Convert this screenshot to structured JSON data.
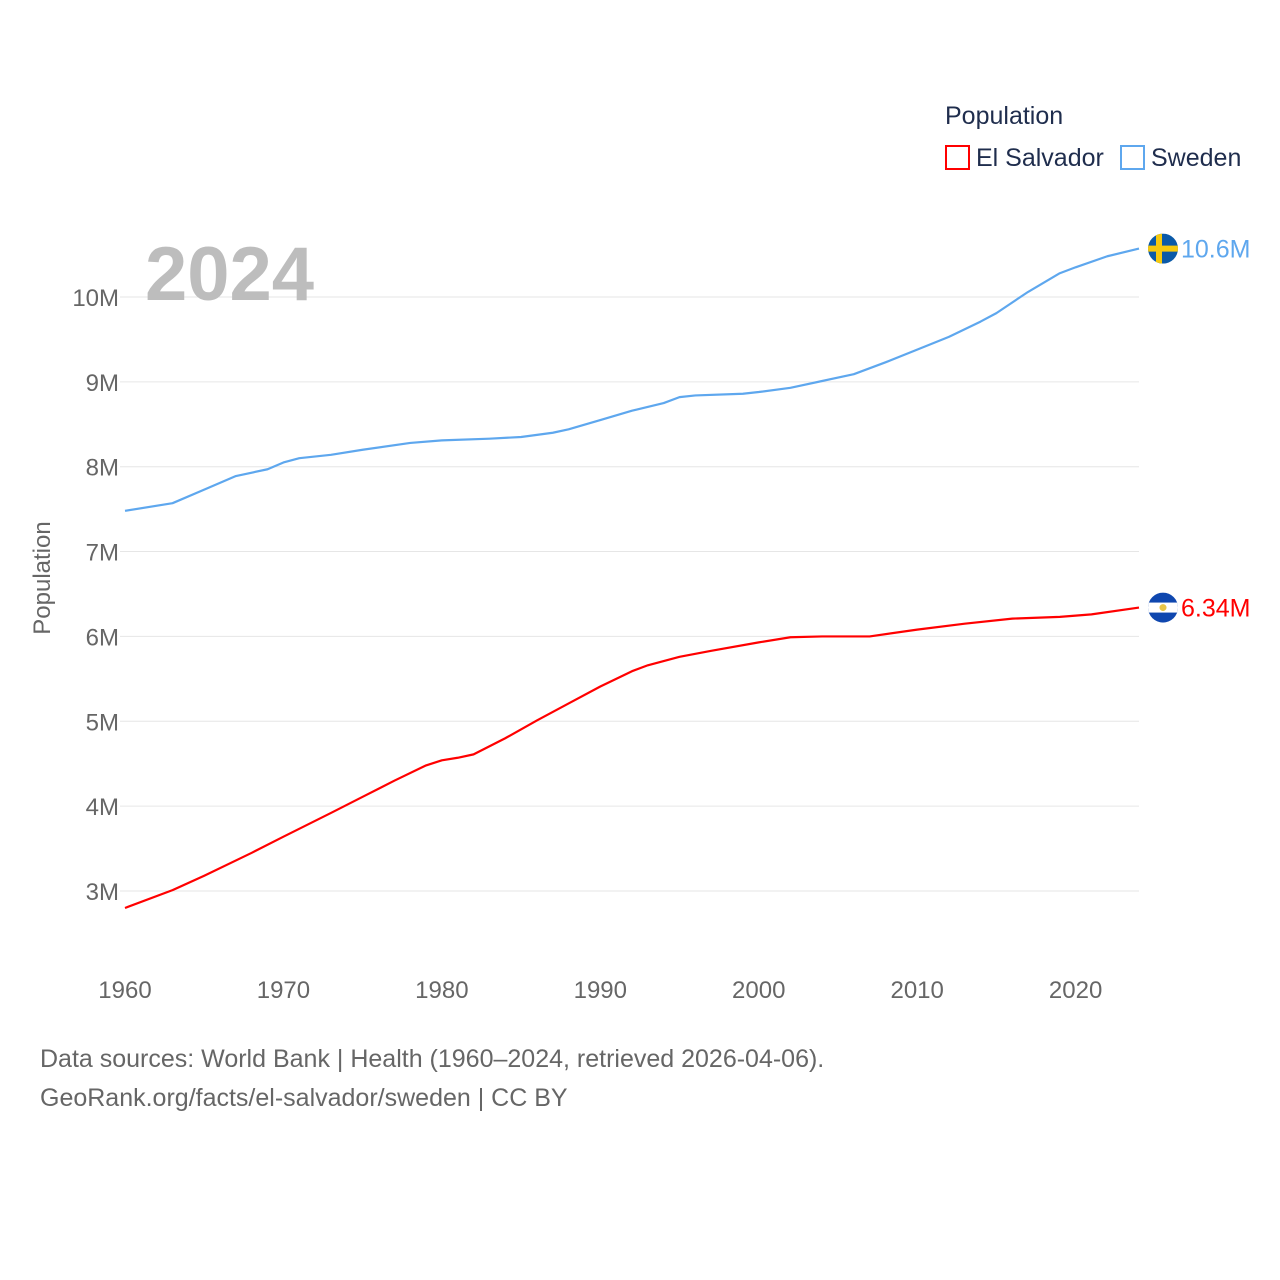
{
  "chart_data": {
    "type": "line",
    "title": "Population",
    "big_year_label": "2024",
    "xlabel": "",
    "ylabel": "Population",
    "xlim": [
      1960,
      2024
    ],
    "ylim": [
      2.3,
      10.9
    ],
    "x_ticks": [
      1960,
      1970,
      1980,
      1990,
      2000,
      2010,
      2020
    ],
    "y_ticks": [
      3,
      4,
      5,
      6,
      7,
      8,
      9,
      10
    ],
    "y_tick_labels": [
      "3M",
      "4M",
      "5M",
      "6M",
      "7M",
      "8M",
      "9M",
      "10M"
    ],
    "grid": true,
    "legend": {
      "title": "Population",
      "placement": "top-right"
    },
    "series": [
      {
        "name": "El Salvador",
        "color": "#ff0000",
        "end_label": "6.34M",
        "flag": "el-salvador-flag",
        "x": [
          1960,
          1963,
          1965,
          1968,
          1970,
          1973,
          1975,
          1977,
          1979,
          1980,
          1981,
          1982,
          1984,
          1986,
          1988,
          1990,
          1992,
          1993,
          1995,
          1997,
          2000,
          2002,
          2004,
          2006,
          2007,
          2010,
          2013,
          2016,
          2019,
          2021,
          2024
        ],
        "y": [
          2.8,
          3.01,
          3.18,
          3.45,
          3.64,
          3.92,
          4.11,
          4.3,
          4.48,
          4.54,
          4.57,
          4.61,
          4.8,
          5.01,
          5.21,
          5.41,
          5.59,
          5.66,
          5.76,
          5.83,
          5.93,
          5.99,
          6.0,
          6.0,
          6.0,
          6.08,
          6.15,
          6.21,
          6.23,
          6.26,
          6.34
        ]
      },
      {
        "name": "Sweden",
        "color": "#5ea7ee",
        "end_label": "10.6M",
        "flag": "sweden-flag",
        "x": [
          1960,
          1963,
          1965,
          1967,
          1969,
          1970,
          1971,
          1973,
          1975,
          1978,
          1980,
          1983,
          1985,
          1987,
          1988,
          1990,
          1992,
          1994,
          1995,
          1996,
          1999,
          2000,
          2002,
          2004,
          2006,
          2008,
          2010,
          2012,
          2014,
          2015,
          2017,
          2019,
          2020,
          2022,
          2024
        ],
        "y": [
          7.48,
          7.57,
          7.73,
          7.89,
          7.97,
          8.05,
          8.1,
          8.14,
          8.2,
          8.28,
          8.31,
          8.33,
          8.35,
          8.4,
          8.44,
          8.55,
          8.66,
          8.75,
          8.82,
          8.84,
          8.86,
          8.88,
          8.93,
          9.01,
          9.09,
          9.23,
          9.38,
          9.53,
          9.71,
          9.81,
          10.06,
          10.28,
          10.35,
          10.48,
          10.57
        ]
      }
    ]
  },
  "footer": {
    "sources": "Data sources: World Bank | Health (1960–2024, retrieved 2026-04-06).",
    "link": "GeoRank.org/facts/el-salvador/sweden | CC BY"
  }
}
